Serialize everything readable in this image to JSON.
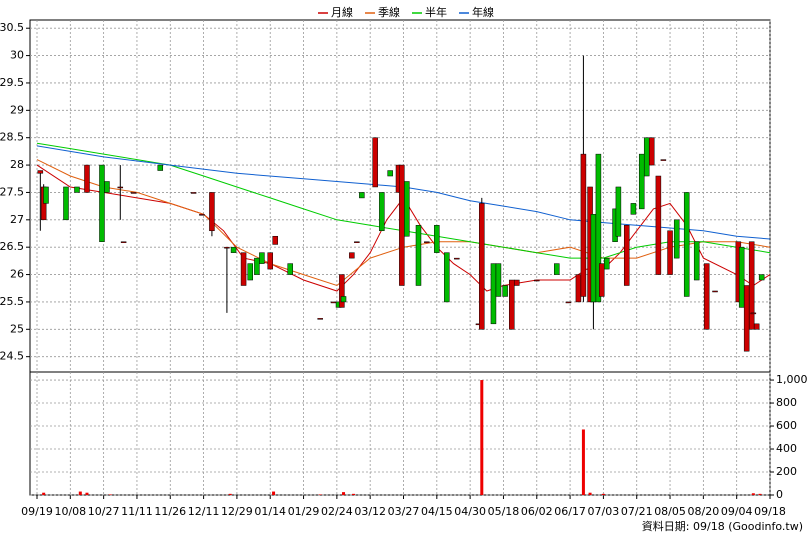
{
  "chart_data": {
    "type": "candlestick",
    "legend": "top",
    "grid": true,
    "note": "資料日期: 09/18 (Goodinfo.tw)",
    "xlim": [
      -0.21,
      22
    ],
    "xticks": [
      {
        "value": 0,
        "label": "09/19"
      },
      {
        "value": 1,
        "label": "10/08"
      },
      {
        "value": 2,
        "label": "10/27"
      },
      {
        "value": 3,
        "label": "11/11"
      },
      {
        "value": 4,
        "label": "11/26"
      },
      {
        "value": 5,
        "label": "12/11"
      },
      {
        "value": 6,
        "label": "12/29"
      },
      {
        "value": 7,
        "label": "01/14"
      },
      {
        "value": 8,
        "label": "01/29"
      },
      {
        "value": 9,
        "label": "02/24"
      },
      {
        "value": 10,
        "label": "03/12"
      },
      {
        "value": 11,
        "label": "03/27"
      },
      {
        "value": 12,
        "label": "04/15"
      },
      {
        "value": 13,
        "label": "04/30"
      },
      {
        "value": 14,
        "label": "05/18"
      },
      {
        "value": 15,
        "label": "06/02"
      },
      {
        "value": 16,
        "label": "06/17"
      },
      {
        "value": 17,
        "label": "07/03"
      },
      {
        "value": 18,
        "label": "07/21"
      },
      {
        "value": 19,
        "label": "08/05"
      },
      {
        "value": 20,
        "label": "08/20"
      },
      {
        "value": 21,
        "label": "09/04"
      },
      {
        "value": 22,
        "label": "09/18"
      }
    ],
    "ylim": [
      24.22,
      30.65
    ],
    "yticks": [
      24.5,
      25,
      25.5,
      26,
      26.5,
      27,
      27.5,
      28,
      28.5,
      29,
      29.5,
      30,
      30.5
    ],
    "y2lim": [
      0,
      1070
    ],
    "y2ticks": [
      0,
      200,
      400,
      600,
      800,
      {
        "value": 1000,
        "label": "1,000"
      }
    ],
    "candles": {
      "up_color": "#cc0000",
      "down_color": "#00bb00",
      "x": [
        0.1,
        0.2,
        0.27,
        0.87,
        1.2,
        1.5,
        1.95,
        2.1,
        2.5,
        2.6,
        2.9,
        3.7,
        4.7,
        4.95,
        5.25,
        5.7,
        5.9,
        6.2,
        6.4,
        6.6,
        6.75,
        7.0,
        7.15,
        7.6,
        8.5,
        8.9,
        9.05,
        9.15,
        9.2,
        9.45,
        9.6,
        9.75,
        10.15,
        10.35,
        10.6,
        10.85,
        10.95,
        11.1,
        11.45,
        11.7,
        12.0,
        12.3,
        12.6,
        13.25,
        13.35,
        13.7,
        13.85,
        14.05,
        14.25,
        14.4,
        15.0,
        15.6,
        15.95,
        16.25,
        16.4,
        16.6,
        16.7,
        16.85,
        16.95,
        17.1,
        17.35,
        17.45,
        17.7,
        17.9,
        18.15,
        18.3,
        18.45,
        18.65,
        18.8,
        19.0,
        19.2,
        19.5,
        19.8,
        20.1,
        20.35,
        21.05,
        21.15,
        21.3,
        21.45,
        21.5,
        21.6,
        21.75
      ],
      "open": [
        27.85,
        27.0,
        27.6,
        27.6,
        27.6,
        27.5,
        28.0,
        27.7,
        27.6,
        26.6,
        27.5,
        28.0,
        27.5,
        27.1,
        26.8,
        26.5,
        26.5,
        25.8,
        26.2,
        26.3,
        26.4,
        26.1,
        26.55,
        26.2,
        25.2,
        25.5,
        25.5,
        25.4,
        25.6,
        26.3,
        26.6,
        27.5,
        27.6,
        27.5,
        27.9,
        27.5,
        25.8,
        27.7,
        26.9,
        26.6,
        26.9,
        26.4,
        26.3,
        25.1,
        25.0,
        26.2,
        26.2,
        25.8,
        25.0,
        25.8,
        25.9,
        26.2,
        25.5,
        25.5,
        25.6,
        25.5,
        27.1,
        28.2,
        25.6,
        26.3,
        27.2,
        27.6,
        25.8,
        27.3,
        28.2,
        28.5,
        28.0,
        26.0,
        28.1,
        26.0,
        27.0,
        27.5,
        26.6,
        25.0,
        25.7,
        25.5,
        26.5,
        24.6,
        25.0,
        25.3,
        25.0,
        26.0
      ],
      "high": [
        27.9,
        27.65,
        27.6,
        27.6,
        27.6,
        28.0,
        28.0,
        27.7,
        28.0,
        26.6,
        27.5,
        28.0,
        27.5,
        27.1,
        27.5,
        26.5,
        26.5,
        26.4,
        26.2,
        26.3,
        26.4,
        26.4,
        26.7,
        26.2,
        25.2,
        25.5,
        25.5,
        26.0,
        25.6,
        26.4,
        26.6,
        27.5,
        28.5,
        27.5,
        27.9,
        28.0,
        28.0,
        27.7,
        26.9,
        26.6,
        26.9,
        26.4,
        26.3,
        25.1,
        27.4,
        26.2,
        26.2,
        25.8,
        25.9,
        25.9,
        25.9,
        26.2,
        25.5,
        26.0,
        30.0,
        27.6,
        27.1,
        28.2,
        26.2,
        26.3,
        27.2,
        27.6,
        26.9,
        27.3,
        28.2,
        28.5,
        28.5,
        27.8,
        28.1,
        26.8,
        27.0,
        27.5,
        26.6,
        26.2,
        25.7,
        26.6,
        26.5,
        25.8,
        26.6,
        25.3,
        25.1,
        26.0
      ],
      "low": [
        26.8,
        27.0,
        27.3,
        27.0,
        27.5,
        27.5,
        26.6,
        27.5,
        27.0,
        26.6,
        27.5,
        27.9,
        27.5,
        27.1,
        26.7,
        25.3,
        26.4,
        25.8,
        25.9,
        26.0,
        26.2,
        26.1,
        26.55,
        26.0,
        25.2,
        25.5,
        25.4,
        25.4,
        25.5,
        26.3,
        26.6,
        27.4,
        27.6,
        26.8,
        27.8,
        27.5,
        25.8,
        26.7,
        25.8,
        26.6,
        26.4,
        25.5,
        26.3,
        25.1,
        25.0,
        25.1,
        25.6,
        25.6,
        25.0,
        25.8,
        25.9,
        26.0,
        25.5,
        25.5,
        25.5,
        25.5,
        25.0,
        25.5,
        25.6,
        26.1,
        26.6,
        26.7,
        25.8,
        27.1,
        27.2,
        27.8,
        28.0,
        26.0,
        28.1,
        26.0,
        26.3,
        25.6,
        25.9,
        25.0,
        25.7,
        25.5,
        25.4,
        24.6,
        25.0,
        25.3,
        25.0,
        25.9
      ],
      "close": [
        27.9,
        27.6,
        27.3,
        27.0,
        27.5,
        28.0,
        26.6,
        27.5,
        27.6,
        26.6,
        27.5,
        27.9,
        27.5,
        27.1,
        27.5,
        26.5,
        26.4,
        26.4,
        25.9,
        26.0,
        26.2,
        26.4,
        26.7,
        26.0,
        25.2,
        25.5,
        25.4,
        26.0,
        25.5,
        26.4,
        26.6,
        27.4,
        28.5,
        26.8,
        27.8,
        28.0,
        28.0,
        26.7,
        25.8,
        26.6,
        26.4,
        25.5,
        26.3,
        25.1,
        27.3,
        25.1,
        25.6,
        25.6,
        25.9,
        25.9,
        25.9,
        26.0,
        25.5,
        26.0,
        28.2,
        27.6,
        25.5,
        25.5,
        26.2,
        26.1,
        26.6,
        26.7,
        26.9,
        27.1,
        27.2,
        27.8,
        28.5,
        27.8,
        28.1,
        26.8,
        26.3,
        25.6,
        25.9,
        26.2,
        25.7,
        26.6,
        25.4,
        25.8,
        26.6,
        25.3,
        25.1,
        25.9
      ]
    },
    "series": [
      {
        "name": "月線",
        "color": "#cc0000",
        "x": [
          0,
          1,
          2,
          3,
          4,
          5,
          5.6,
          6.2,
          7,
          8,
          9,
          9.5,
          10,
          10.5,
          11,
          11.5,
          12,
          12.5,
          13,
          13.5,
          14,
          15,
          16,
          16.5,
          17,
          17.5,
          18,
          18.5,
          19,
          19.5,
          20,
          21,
          21.5,
          22
        ],
        "values": [
          28.0,
          27.6,
          27.5,
          27.4,
          27.3,
          27.1,
          26.8,
          26.3,
          26.2,
          25.9,
          25.7,
          26.0,
          26.4,
          27.0,
          27.4,
          26.9,
          26.5,
          26.2,
          26.0,
          25.7,
          25.8,
          25.9,
          25.9,
          26.1,
          26.1,
          26.4,
          26.8,
          27.2,
          27.3,
          26.9,
          26.3,
          26.0,
          25.8,
          26.0
        ]
      },
      {
        "name": "季線",
        "color": "#e06010",
        "x": [
          0,
          1,
          2,
          3,
          4,
          5,
          6,
          7,
          8,
          9,
          10,
          11,
          12,
          13,
          14,
          15,
          16,
          17,
          18,
          19,
          20,
          21,
          22
        ],
        "values": [
          28.1,
          27.8,
          27.6,
          27.5,
          27.3,
          27.1,
          26.5,
          26.2,
          26.0,
          25.8,
          26.3,
          26.5,
          26.6,
          26.6,
          26.5,
          26.4,
          26.5,
          26.3,
          26.3,
          26.5,
          26.6,
          26.6,
          26.5
        ]
      },
      {
        "name": "半年",
        "color": "#00cc00",
        "x": [
          0,
          1,
          2,
          3,
          4,
          5,
          6,
          7,
          8,
          9,
          10,
          11,
          12,
          13,
          14,
          15,
          16,
          17,
          17.5,
          18,
          19,
          20,
          21,
          22
        ],
        "values": [
          28.4,
          28.3,
          28.2,
          28.1,
          28.0,
          27.8,
          27.6,
          27.4,
          27.2,
          27.0,
          26.9,
          26.8,
          26.7,
          26.6,
          26.5,
          26.4,
          26.3,
          26.3,
          26.4,
          26.5,
          26.6,
          26.6,
          26.5,
          26.4
        ]
      },
      {
        "name": "年線",
        "color": "#1060d0",
        "x": [
          0,
          2,
          4,
          6,
          8,
          10,
          11,
          12,
          13,
          14,
          15,
          16,
          17,
          18,
          19,
          20,
          21,
          22
        ],
        "values": [
          28.35,
          28.15,
          28.0,
          27.85,
          27.75,
          27.65,
          27.6,
          27.5,
          27.35,
          27.25,
          27.15,
          27.0,
          26.95,
          26.9,
          26.85,
          26.8,
          26.7,
          26.65
        ]
      }
    ],
    "volume": {
      "axis": "y2",
      "color": "#ee0000",
      "x": [
        0.2,
        1.3,
        1.5,
        2.2,
        5.8,
        7.1,
        8.5,
        9.2,
        9.5,
        13.35,
        16.4,
        16.6,
        17.0,
        21.5,
        21.7
      ],
      "values": [
        20,
        30,
        20,
        5,
        10,
        30,
        5,
        25,
        10,
        1000,
        570,
        20,
        10,
        15,
        10
      ]
    }
  }
}
